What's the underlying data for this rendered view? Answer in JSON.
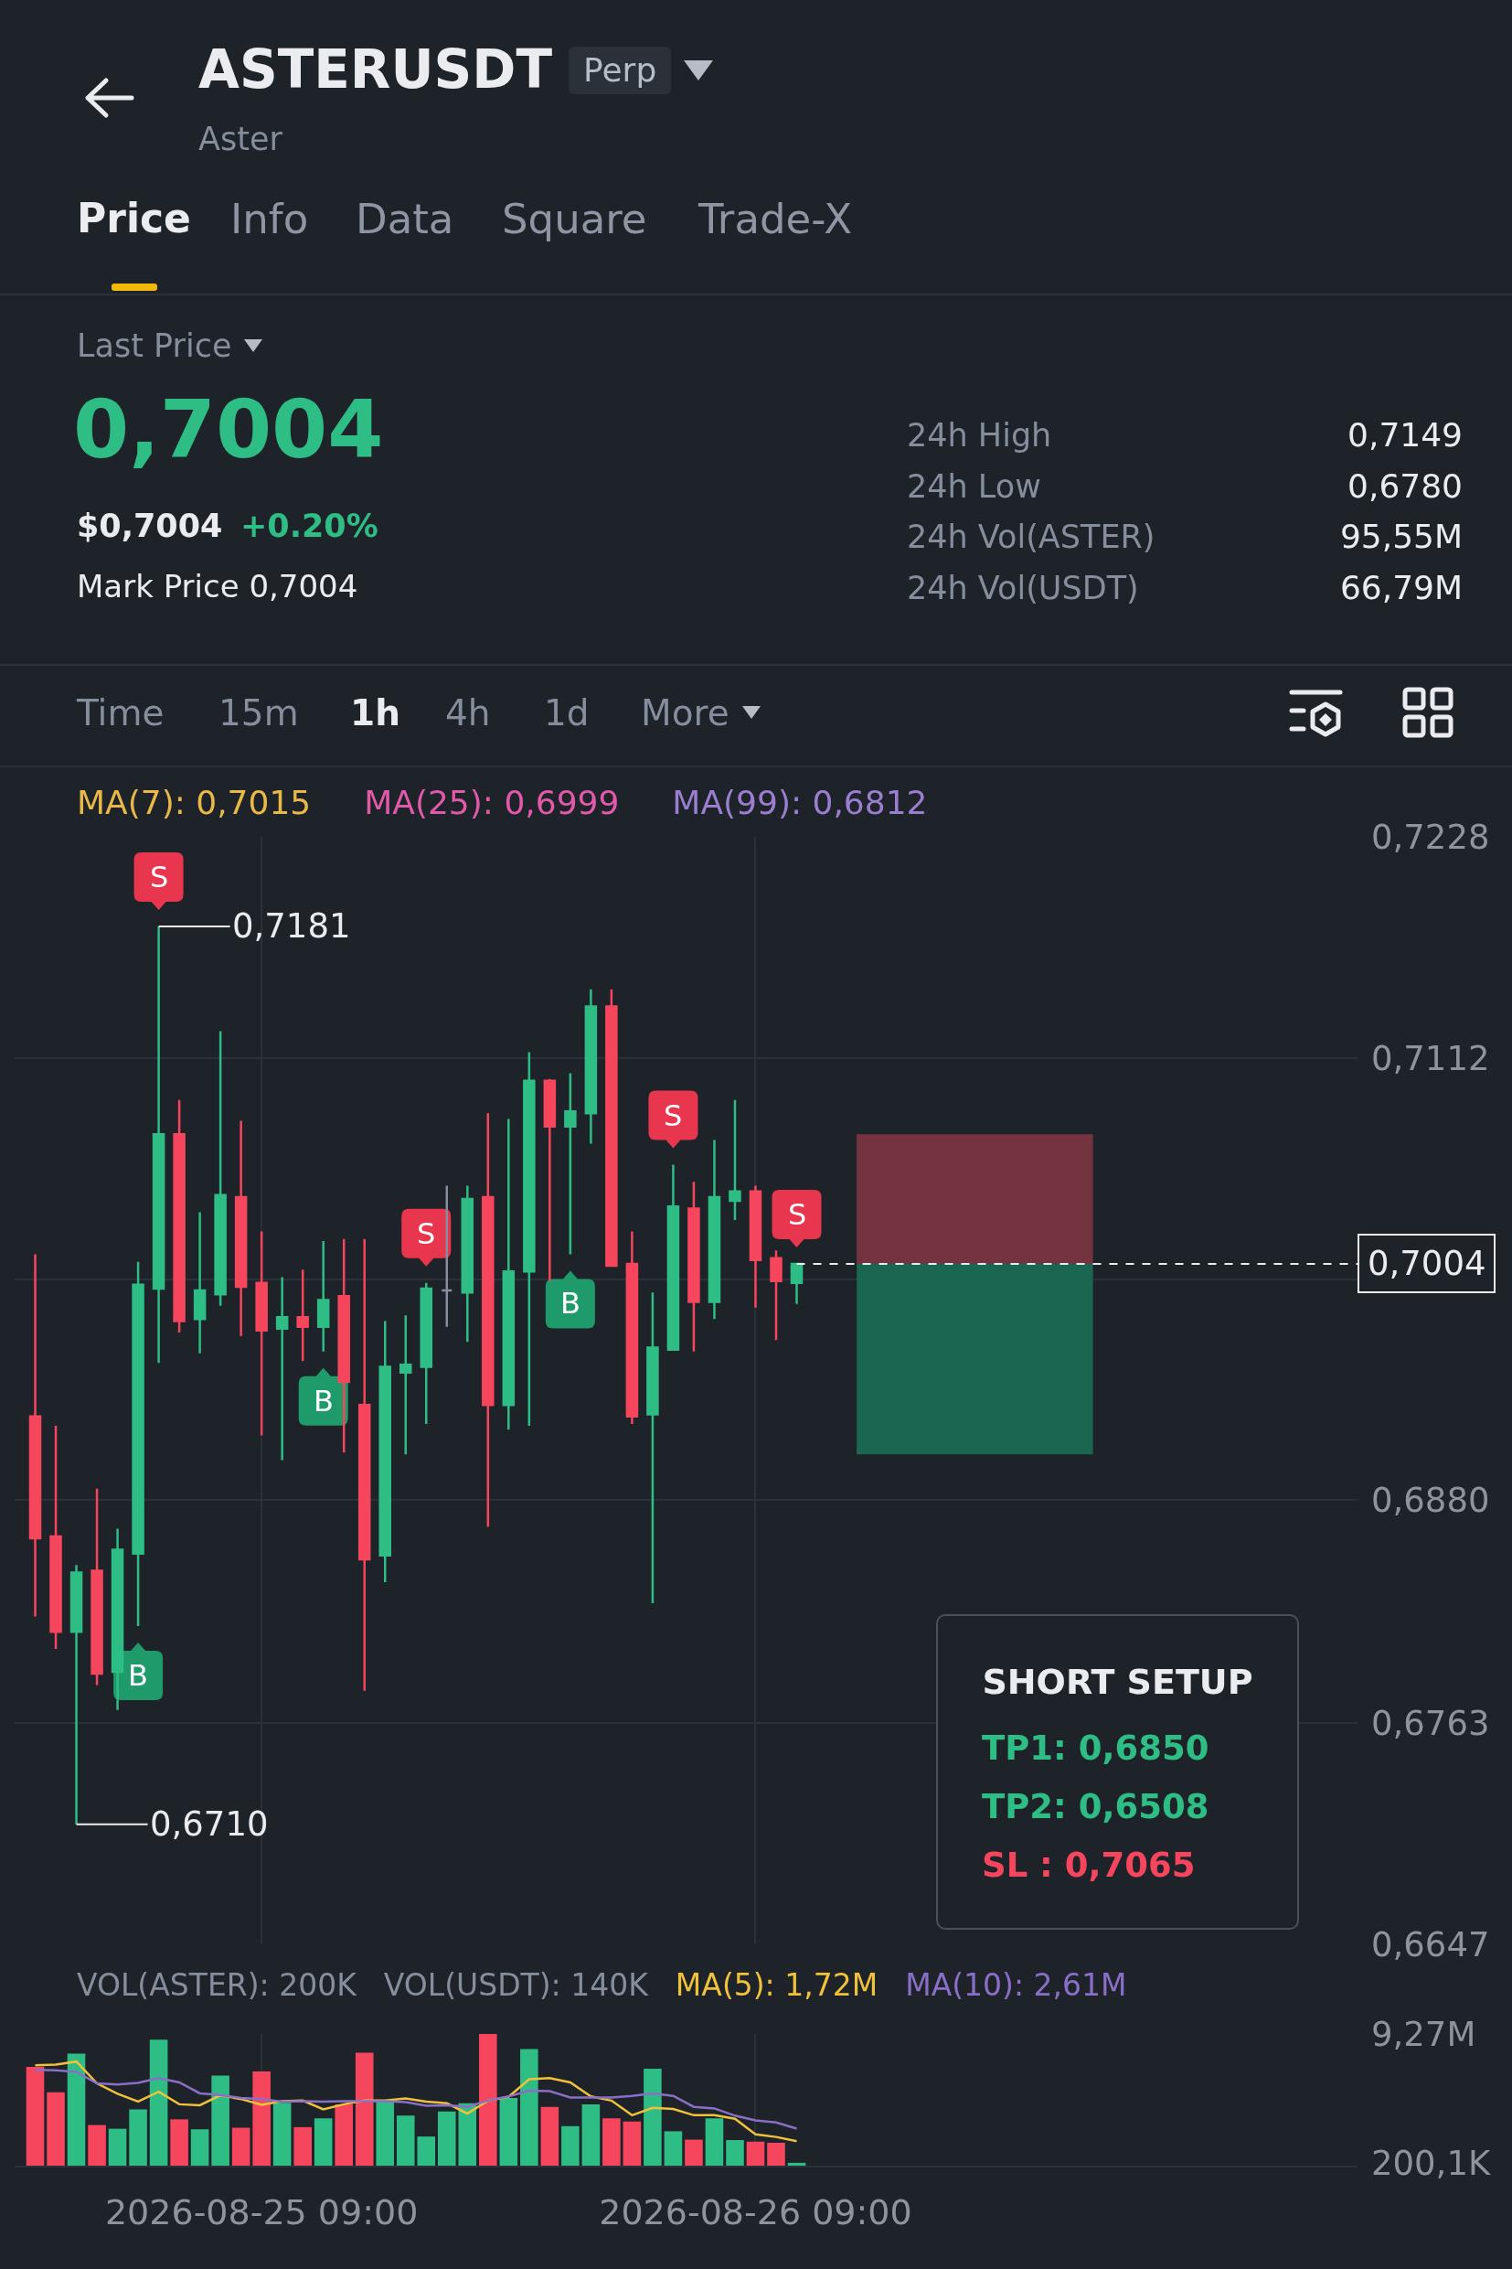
{
  "chart_data": [
    {
      "type": "other",
      "title": "ASTERUSDT",
      "subtitle": "Aster",
      "annotations": [
        "Perp",
        "Price",
        "Info",
        "Data",
        "Square",
        "Trade-X",
        "Last Price",
        "0,7004",
        "$0,7004",
        "+0.20%",
        "Mark Price 0,7004",
        "24h High",
        "0,7149",
        "24h Low",
        "0,6780",
        "24h Vol(ASTER)",
        "95,55M",
        "24h Vol(USDT)",
        "66,79M",
        "Time",
        "15m",
        "1h",
        "4h",
        "1d",
        "More"
      ]
    },
    {
      "type": "candlestick",
      "annotations": [
        "MA(7): 0,7015",
        "MA(25): 0,6999",
        "MA(99): 0,6812",
        "SHORT SETUP",
        "TP1: 0,6850",
        "TP2: 0,6508",
        "SL : 0,7065",
        {
          "text": "S",
          "x": "2026-08-25T04:00",
          "y": 0.7181
        },
        {
          "text": "B",
          "x": "2026-08-25T03:00",
          "y": 0.6814
        },
        {
          "text": "B",
          "x": "2026-08-25T12:00",
          "y": 0.6958
        },
        {
          "text": "S",
          "x": "2026-08-25T17:00",
          "y": 0.6994
        },
        {
          "text": "B",
          "x": "2026-08-26T00:00",
          "y": 0.7009
        },
        {
          "text": "S",
          "x": "2026-08-26T05:00",
          "y": 0.7056
        },
        {
          "text": "S",
          "x": "2026-08-26T11:00",
          "y": 0.7004
        }
      ],
      "x": [
        "2026-08-24T22:00",
        "2026-08-24T23:00",
        "2026-08-25T00:00",
        "2026-08-25T01:00",
        "2026-08-25T02:00",
        "2026-08-25T03:00",
        "2026-08-25T04:00",
        "2026-08-25T05:00",
        "2026-08-25T06:00",
        "2026-08-25T07:00",
        "2026-08-25T08:00",
        "2026-08-25T09:00",
        "2026-08-25T10:00",
        "2026-08-25T11:00",
        "2026-08-25T12:00",
        "2026-08-25T13:00",
        "2026-08-25T14:00",
        "2026-08-25T15:00",
        "2026-08-25T16:00",
        "2026-08-25T17:00",
        "2026-08-25T18:00",
        "2026-08-25T19:00",
        "2026-08-25T20:00",
        "2026-08-25T21:00",
        "2026-08-25T22:00",
        "2026-08-25T23:00",
        "2026-08-26T00:00",
        "2026-08-26T01:00",
        "2026-08-26T02:00",
        "2026-08-26T03:00",
        "2026-08-26T04:00",
        "2026-08-26T05:00",
        "2026-08-26T06:00",
        "2026-08-26T07:00",
        "2026-08-26T08:00",
        "2026-08-26T09:00",
        "2026-08-26T10:00",
        "2026-08-26T11:00"
      ],
      "ohlc": [
        [
          0.6924,
          0.7009,
          0.6819,
          0.686
        ],
        [
          0.6861,
          0.6919,
          0.6802,
          0.6811
        ],
        [
          0.6811,
          0.6846,
          0.671,
          0.6842
        ],
        [
          0.6843,
          0.6886,
          0.6783,
          0.6789
        ],
        [
          0.679,
          0.6865,
          0.677,
          0.6854
        ],
        [
          0.6852,
          0.7005,
          0.6814,
          0.6993
        ],
        [
          0.6991,
          0.7181,
          0.6952,
          0.7072
        ],
        [
          0.7072,
          0.709,
          0.6968,
          0.6974
        ],
        [
          0.6975,
          0.7031,
          0.6957,
          0.699
        ],
        [
          0.6988,
          0.7126,
          0.6982,
          0.704
        ],
        [
          0.7039,
          0.7079,
          0.6966,
          0.6992
        ],
        [
          0.6994,
          0.7021,
          0.6914,
          0.6969
        ],
        [
          0.697,
          0.6997,
          0.6901,
          0.6976
        ],
        [
          0.6976,
          0.7001,
          0.6953,
          0.6971
        ],
        [
          0.6971,
          0.7016,
          0.6958,
          0.6985
        ],
        [
          0.6987,
          0.7017,
          0.6905,
          0.6942
        ],
        [
          0.693,
          0.7017,
          0.678,
          0.6849
        ],
        [
          0.6851,
          0.6974,
          0.6837,
          0.695
        ],
        [
          0.6947,
          0.6977,
          0.6904,
          0.6951
        ],
        [
          0.695,
          0.6994,
          0.692,
          0.6991
        ],
        [
          0.699,
          0.7045,
          0.6971,
          0.699
        ],
        [
          0.6989,
          0.7045,
          0.6963,
          0.7038
        ],
        [
          0.7039,
          0.7083,
          0.6866,
          0.693
        ],
        [
          0.693,
          0.708,
          0.6917,
          0.7
        ],
        [
          0.7,
          0.7115,
          0.6919,
          0.71
        ],
        [
          0.71,
          0.7101,
          0.6995,
          0.7076
        ],
        [
          0.7076,
          0.7104,
          0.7009,
          0.7084
        ],
        [
          0.7083,
          0.7148,
          0.7067,
          0.7139
        ],
        [
          0.7139,
          0.7148,
          0.7003,
          0.7003
        ],
        [
          0.7004,
          0.7021,
          0.692,
          0.6924
        ],
        [
          0.6925,
          0.6989,
          0.6826,
          0.696
        ],
        [
          0.6959,
          0.7056,
          0.6959,
          0.7034
        ],
        [
          0.7033,
          0.7047,
          0.6958,
          0.6984
        ],
        [
          0.6984,
          0.7069,
          0.6975,
          0.7039
        ],
        [
          0.7037,
          0.709,
          0.7027,
          0.7042
        ],
        [
          0.7042,
          0.7045,
          0.6981,
          0.7006
        ],
        [
          0.7007,
          0.7011,
          0.6964,
          0.6995
        ],
        [
          0.6994,
          0.7004,
          0.6983,
          0.7004
        ]
      ],
      "colors": [
        "#f6465d",
        "#f6465d",
        "#2ebd85",
        "#f6465d",
        "#2ebd85",
        "#2ebd85",
        "#2ebd85",
        "#f6465d",
        "#2ebd85",
        "#2ebd85",
        "#f6465d",
        "#f6465d",
        "#2ebd85",
        "#f6465d",
        "#2ebd85",
        "#f6465d",
        "#f6465d",
        "#2ebd85",
        "#2ebd85",
        "#2ebd85",
        "#848e9c",
        "#2ebd85",
        "#f6465d",
        "#2ebd85",
        "#2ebd85",
        "#f6465d",
        "#2ebd85",
        "#2ebd85",
        "#f6465d",
        "#f6465d",
        "#2ebd85",
        "#2ebd85",
        "#f6465d",
        "#2ebd85",
        "#2ebd85",
        "#f6465d",
        "#f6465d",
        "#2ebd85"
      ],
      "value_labels": [
        null,
        null,
        "0,6710",
        null,
        null,
        null,
        "0,7181",
        null,
        null,
        null,
        null,
        null,
        null,
        null,
        null,
        null,
        null,
        null,
        null,
        null,
        null,
        null,
        null,
        null,
        null,
        null,
        null,
        null,
        null,
        null,
        null,
        null,
        null,
        null,
        null,
        null,
        null,
        null
      ],
      "xlim": [
        "2026-08-24T21:00",
        "2026-08-27T14:15"
      ],
      "xticks": [
        {
          "value": "2026-08-25T09:00",
          "label": null
        },
        {
          "value": "2026-08-26T09:00",
          "label": null
        }
      ],
      "ylim": [
        0.6647,
        0.7228
      ],
      "yticks": [
        {
          "value": 0.6647,
          "label": "0,6647"
        },
        {
          "value": 0.6763,
          "label": "0,6763"
        },
        {
          "value": 0.688,
          "label": "0,6880"
        },
        {
          "value": 0.6996,
          "label": null
        },
        {
          "value": 0.7112,
          "label": "0,7112"
        },
        {
          "value": 0.7228,
          "label": "0,7228"
        }
      ],
      "tick_labels": "y",
      "grid": true,
      "ref_lines": [
        {
          "axis": "y",
          "value": 0.7004,
          "label": "0,7004",
          "line_style": "dashed",
          "color": "#eaecef"
        }
      ],
      "bands": [
        {
          "axis": "y",
          "from": 0.7004,
          "to": 0.7072,
          "color": "#733440"
        },
        {
          "axis": "y",
          "from": 0.6904,
          "to": 0.7004,
          "color": "#1b6650"
        }
      ]
    },
    {
      "type": "bar",
      "annotations": [
        "VOL(ASTER): 200K",
        "VOL(USDT): 140K"
      ],
      "x": [
        "2026-08-24T22:00",
        "2026-08-24T23:00",
        "2026-08-25T00:00",
        "2026-08-25T01:00",
        "2026-08-25T02:00",
        "2026-08-25T03:00",
        "2026-08-25T04:00",
        "2026-08-25T05:00",
        "2026-08-25T06:00",
        "2026-08-25T07:00",
        "2026-08-25T08:00",
        "2026-08-25T09:00",
        "2026-08-25T10:00",
        "2026-08-25T11:00",
        "2026-08-25T12:00",
        "2026-08-25T13:00",
        "2026-08-25T14:00",
        "2026-08-25T15:00",
        "2026-08-25T16:00",
        "2026-08-25T17:00",
        "2026-08-25T18:00",
        "2026-08-25T19:00",
        "2026-08-25T20:00",
        "2026-08-25T21:00",
        "2026-08-25T22:00",
        "2026-08-25T23:00",
        "2026-08-26T00:00",
        "2026-08-26T01:00",
        "2026-08-26T02:00",
        "2026-08-26T03:00",
        "2026-08-26T04:00",
        "2026-08-26T05:00",
        "2026-08-26T06:00",
        "2026-08-26T07:00",
        "2026-08-26T08:00",
        "2026-08-26T09:00",
        "2026-08-26T10:00",
        "2026-08-26T11:00"
      ],
      "series": [
        {
          "type": "bar",
          "colors": [
            "#f6465d",
            "#f6465d",
            "#2ebd85",
            "#f6465d",
            "#2ebd85",
            "#2ebd85",
            "#2ebd85",
            "#f6465d",
            "#2ebd85",
            "#2ebd85",
            "#f6465d",
            "#f6465d",
            "#2ebd85",
            "#f6465d",
            "#2ebd85",
            "#f6465d",
            "#f6465d",
            "#2ebd85",
            "#2ebd85",
            "#2ebd85",
            "#2ebd85",
            "#2ebd85",
            "#f6465d",
            "#2ebd85",
            "#2ebd85",
            "#f6465d",
            "#2ebd85",
            "#2ebd85",
            "#f6465d",
            "#f6465d",
            "#2ebd85",
            "#2ebd85",
            "#f6465d",
            "#2ebd85",
            "#2ebd85",
            "#f6465d",
            "#f6465d",
            "#2ebd85"
          ],
          "values": [
            6960000,
            5170000,
            7880000,
            2860000,
            2600000,
            3960000,
            8870000,
            3260000,
            2560000,
            6340000,
            2670000,
            6630000,
            4430000,
            2710000,
            3330000,
            4320000,
            7950000,
            4540000,
            3520000,
            2050000,
            3810000,
            4400000,
            9270000,
            4760000,
            8210000,
            4140000,
            2780000,
            4320000,
            3330000,
            3110000,
            6820000,
            2420000,
            1830000,
            3330000,
            1800000,
            1690000,
            1610000,
            200100
          ]
        },
        {
          "type": "line",
          "name": "MA(5): 1,72M",
          "color": "#f0c23c",
          "values": [
            7070000,
            7110000,
            7330000,
            5790000,
            5060000,
            4510000,
            5200000,
            4320000,
            4250000,
            4950000,
            4690000,
            4290000,
            4540000,
            4580000,
            3960000,
            4320000,
            4580000,
            4580000,
            4730000,
            4510000,
            4400000,
            3660000,
            4580000,
            4840000,
            6080000,
            6160000,
            5860000,
            4870000,
            4580000,
            3550000,
            4070000,
            3990000,
            3550000,
            3550000,
            3300000,
            2200000,
            2020000,
            1720000
          ]
        },
        {
          "type": "line",
          "name": "MA(10): 2,61M",
          "color": "#8a6fc8",
          "values": [
            6740000,
            6710000,
            6600000,
            5790000,
            5720000,
            5830000,
            6160000,
            5860000,
            5090000,
            4980000,
            4760000,
            4690000,
            4510000,
            4540000,
            4510000,
            4540000,
            4540000,
            4540000,
            4470000,
            4210000,
            4250000,
            4140000,
            4580000,
            4870000,
            5280000,
            5240000,
            4800000,
            4800000,
            4800000,
            4910000,
            5090000,
            4910000,
            4140000,
            4030000,
            3520000,
            3190000,
            3040000,
            2610000
          ]
        }
      ],
      "xlim": [
        "2026-08-24T21:00",
        "2026-08-27T14:15"
      ],
      "xticks": [
        {
          "value": "2026-08-25T09:00",
          "label": "2026-08-25 09:00"
        },
        {
          "value": "2026-08-26T09:00",
          "label": "2026-08-26 09:00"
        }
      ],
      "ylim": [
        0,
        9270000
      ],
      "yticks": [
        {
          "value": 200100,
          "label": "200,1K"
        },
        {
          "value": 9270000,
          "label": "9,27M"
        }
      ],
      "grid": "x",
      "legend": "top"
    }
  ]
}
